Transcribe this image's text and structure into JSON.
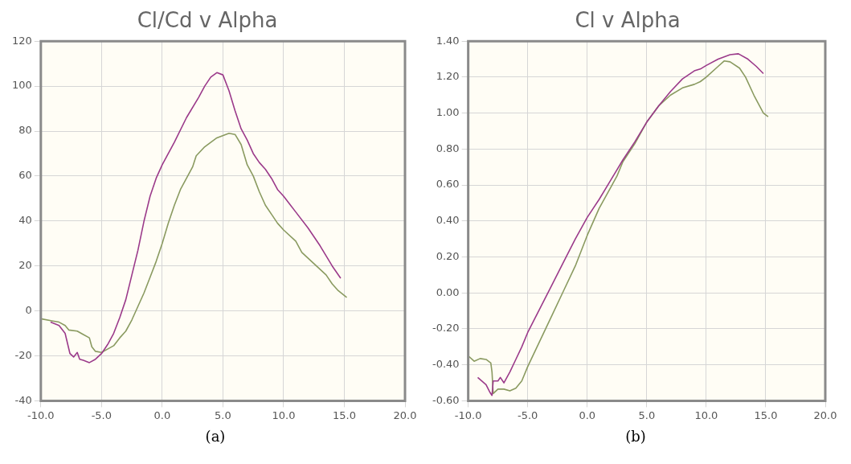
{
  "chart_data": [
    {
      "type": "line",
      "title": "Cl/Cd v Alpha",
      "marker": "none",
      "grid": true,
      "legend": false,
      "annotations": [
        "(a)"
      ],
      "xlim": [
        -10,
        20
      ],
      "xticks": [
        {
          "value": -10,
          "label": "-10.0"
        },
        {
          "value": -5,
          "label": "-5.0"
        },
        {
          "value": 0,
          "label": "0.0"
        },
        {
          "value": 5,
          "label": "5.0"
        },
        {
          "value": 10,
          "label": "10.0"
        },
        {
          "value": 15,
          "label": "15.0"
        },
        {
          "value": 20,
          "label": "20.0"
        }
      ],
      "ylim": [
        -40,
        120
      ],
      "yticks": [
        -40,
        -20,
        0,
        20,
        40,
        60,
        80,
        100,
        120
      ],
      "series": [
        {
          "color": "#9b3a8a",
          "x": [
            -9.2,
            -8.5,
            -8,
            -7.6,
            -7.3,
            -7,
            -6.8,
            -6.5,
            -6,
            -5.5,
            -5,
            -4.5,
            -4,
            -3.5,
            -3,
            -2.5,
            -2,
            -1.5,
            -1,
            -0.5,
            0,
            1,
            2,
            3,
            3.5,
            4,
            4.5,
            5,
            5.5,
            6,
            6.5,
            7,
            7.5,
            8,
            8.5,
            9,
            9.5,
            10,
            11,
            12,
            13,
            14,
            14.7
          ],
          "values": [
            -5,
            -6.5,
            -10,
            -19,
            -20.5,
            -18.5,
            -21.5,
            -22,
            -23,
            -21.5,
            -19,
            -15,
            -10,
            -3,
            5,
            16,
            27,
            40,
            51,
            59,
            65,
            75,
            86,
            95,
            100,
            104,
            106,
            105,
            98,
            89,
            81,
            76,
            70,
            66,
            63,
            59,
            54,
            51,
            44,
            37,
            29,
            20,
            14.5
          ]
        },
        {
          "color": "#8a9a60",
          "x": [
            -10,
            -9,
            -8.5,
            -8,
            -7.7,
            -7,
            -6.5,
            -6,
            -5.8,
            -5.5,
            -5,
            -4.5,
            -4,
            -3.5,
            -3,
            -2.5,
            -2,
            -1.5,
            -1,
            -0.5,
            0,
            0.5,
            1,
            1.5,
            2,
            2.5,
            2.8,
            3.5,
            4.5,
            5.5,
            6,
            6.5,
            7,
            7.5,
            8,
            8.5,
            9,
            9.5,
            10,
            11,
            11.5,
            12.5,
            13.5,
            14,
            14.5,
            15.2
          ],
          "values": [
            -3.5,
            -4.5,
            -5,
            -6.5,
            -8.5,
            -9,
            -10.5,
            -12,
            -16,
            -18,
            -18.5,
            -17,
            -15.5,
            -12,
            -9,
            -4,
            2,
            8,
            15,
            22,
            30,
            39,
            47,
            54,
            59,
            64,
            69,
            73,
            77,
            79,
            78.5,
            74,
            65,
            60,
            53,
            47,
            43,
            39,
            36,
            31,
            26,
            21,
            16,
            12,
            9,
            6
          ]
        }
      ]
    },
    {
      "type": "line",
      "title": "Cl v Alpha",
      "marker": "none",
      "grid": true,
      "legend": false,
      "annotations": [
        "(b)"
      ],
      "xlim": [
        -10,
        20
      ],
      "xticks": [
        {
          "value": -10,
          "label": "-10.0"
        },
        {
          "value": -5,
          "label": "-5.0"
        },
        {
          "value": 0,
          "label": "0.0"
        },
        {
          "value": 5,
          "label": "5.0"
        },
        {
          "value": 10,
          "label": "10.0"
        },
        {
          "value": 15,
          "label": "15.0"
        },
        {
          "value": 20,
          "label": "20.0"
        }
      ],
      "ylim": [
        -0.6,
        1.4
      ],
      "yticks": [
        {
          "value": -0.6,
          "label": "-0.60"
        },
        {
          "value": -0.4,
          "label": "-0.40"
        },
        {
          "value": -0.2,
          "label": "-0.20"
        },
        {
          "value": 0,
          "label": "0.00"
        },
        {
          "value": 0.2,
          "label": "0.20"
        },
        {
          "value": 0.4,
          "label": "0.40"
        },
        {
          "value": 0.6,
          "label": "0.60"
        },
        {
          "value": 0.8,
          "label": "0.80"
        },
        {
          "value": 1,
          "label": "1.00"
        },
        {
          "value": 1.2,
          "label": "1.20"
        },
        {
          "value": 1.4,
          "label": "1.40"
        }
      ],
      "series": [
        {
          "color": "#9b3a8a",
          "x": [
            -9.2,
            -8.5,
            -8.2,
            -8,
            -7.9,
            -7.5,
            -7.3,
            -7,
            -6.5,
            -6,
            -5.5,
            -5,
            -4,
            -3,
            -2,
            -1,
            0,
            1,
            2,
            3,
            4,
            5,
            6,
            7,
            8,
            9,
            9.5,
            10,
            11,
            12,
            12.7,
            13.5,
            14.2,
            14.8
          ],
          "values": [
            -0.47,
            -0.51,
            -0.55,
            -0.57,
            -0.49,
            -0.49,
            -0.47,
            -0.5,
            -0.44,
            -0.37,
            -0.3,
            -0.22,
            -0.09,
            0.04,
            0.17,
            0.3,
            0.42,
            0.52,
            0.63,
            0.74,
            0.84,
            0.95,
            1.04,
            1.12,
            1.19,
            1.235,
            1.245,
            1.265,
            1.3,
            1.325,
            1.33,
            1.3,
            1.26,
            1.22
          ]
        },
        {
          "color": "#8a9a60",
          "x": [
            -10,
            -9.5,
            -9,
            -8.5,
            -8.1,
            -8,
            -7.9,
            -7.5,
            -7,
            -6.5,
            -6,
            -5.5,
            -5,
            -4,
            -3,
            -2,
            -1,
            0,
            1,
            2,
            2.5,
            3,
            4,
            5,
            6,
            7,
            8,
            9,
            9.5,
            10,
            11,
            11.5,
            12,
            12.8,
            13.3,
            14,
            14.8,
            15.2
          ],
          "values": [
            -0.35,
            -0.38,
            -0.365,
            -0.37,
            -0.39,
            -0.44,
            -0.56,
            -0.535,
            -0.535,
            -0.545,
            -0.53,
            -0.49,
            -0.41,
            -0.27,
            -0.13,
            0.01,
            0.15,
            0.32,
            0.47,
            0.59,
            0.65,
            0.73,
            0.83,
            0.95,
            1.04,
            1.1,
            1.14,
            1.16,
            1.175,
            1.2,
            1.26,
            1.29,
            1.285,
            1.25,
            1.2,
            1.1,
            1.0,
            0.98
          ]
        }
      ]
    }
  ]
}
